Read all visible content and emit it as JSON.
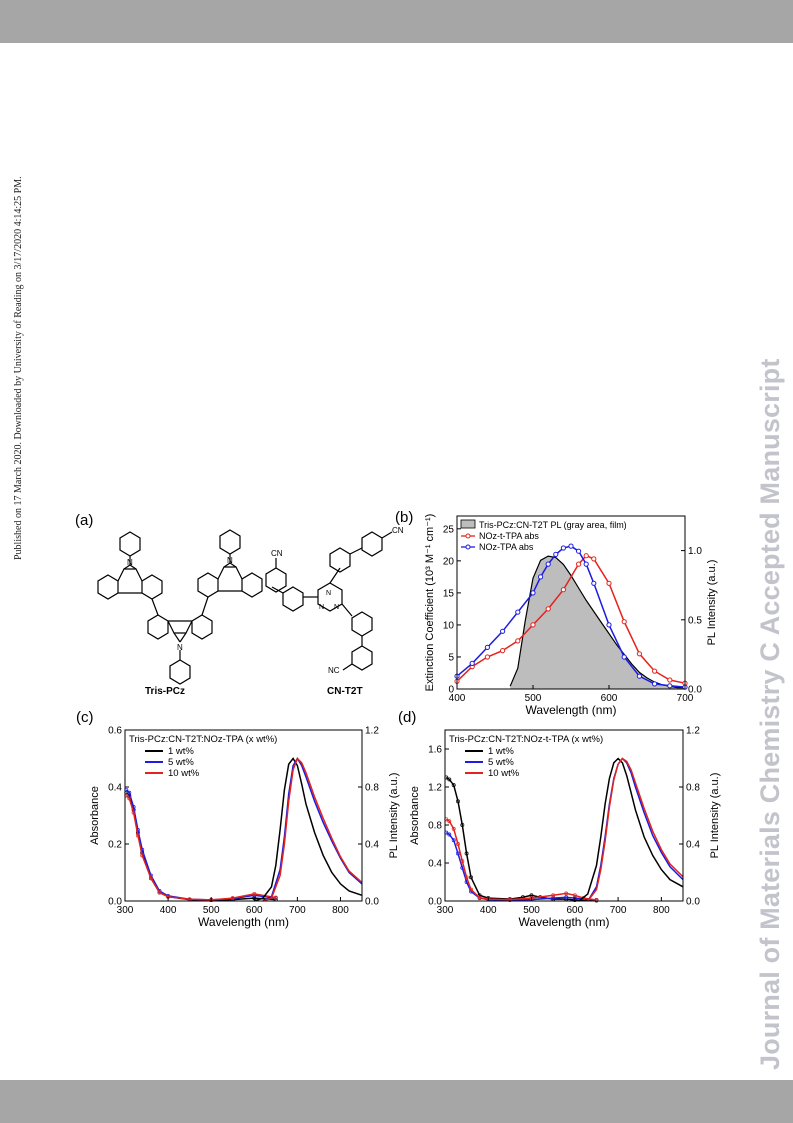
{
  "header": {
    "band_color": "#a6a6a6"
  },
  "side_note": "Published on 17 March 2020. Downloaded by University of Reading on 3/17/2020 4:14:25 PM.",
  "watermark": "Journal of Materials Chemistry C Accepted Manuscript",
  "panels": {
    "a": {
      "label": "(a)",
      "mol1_name": "Tris-PCz",
      "mol2_name": "CN-T2T",
      "atom_n": "N",
      "atom_cn": "CN",
      "atom_nc": "NC"
    },
    "b": {
      "label": "(b)"
    },
    "c": {
      "label": "(c)"
    },
    "d": {
      "label": "(d)"
    }
  },
  "chart_data": [
    {
      "panel": "b",
      "type": "line",
      "xlabel": "Wavelength (nm)",
      "ylabel": "Extinction Coefficient (10³ M⁻¹ cm⁻¹)",
      "y2label": "PL Intensity (a.u.)",
      "xlim": [
        400,
        700
      ],
      "ylim": [
        0,
        27
      ],
      "y2lim": [
        0,
        1.25
      ],
      "xticks": [
        "400",
        "500",
        "600",
        "700"
      ],
      "yticks": [
        "0",
        "5",
        "10",
        "15",
        "20",
        "25"
      ],
      "y2ticks": [
        "0.0",
        "0.5",
        "1.0"
      ],
      "legend": [
        "Tris-PCz:CN-T2T PL (gray area, film)",
        "NOz-t-TPA abs",
        "NOz-TPA abs"
      ],
      "legend_position": "top",
      "series": [
        {
          "name": "Tris-PCz:CN-T2T PL (gray area, film)",
          "axis": "y2",
          "style": "area",
          "color": "#bdbdbd",
          "x": [
            470,
            480,
            490,
            500,
            510,
            520,
            530,
            540,
            550,
            560,
            570,
            580,
            590,
            600,
            610,
            620,
            630,
            640,
            650,
            660,
            670,
            680,
            690,
            700
          ],
          "y": [
            0.02,
            0.15,
            0.5,
            0.8,
            0.93,
            0.96,
            0.95,
            0.9,
            0.82,
            0.73,
            0.64,
            0.56,
            0.48,
            0.4,
            0.32,
            0.25,
            0.18,
            0.12,
            0.08,
            0.05,
            0.03,
            0.02,
            0.01,
            0.01
          ]
        },
        {
          "name": "NOz-t-TPA abs",
          "axis": "y",
          "style": "line-marker",
          "color": "#e3231c",
          "x": [
            400,
            420,
            440,
            460,
            480,
            500,
            520,
            540,
            560,
            570,
            580,
            600,
            620,
            640,
            660,
            680,
            700
          ],
          "y": [
            1.2,
            3.5,
            5.0,
            6.0,
            7.5,
            10.0,
            12.5,
            15.5,
            19.5,
            20.8,
            20.3,
            16.5,
            10.5,
            5.5,
            2.8,
            1.4,
            0.9
          ]
        },
        {
          "name": "NOz-TPA abs",
          "axis": "y",
          "style": "line-marker",
          "color": "#1c1ce3",
          "x": [
            400,
            420,
            440,
            460,
            480,
            500,
            510,
            520,
            530,
            540,
            550,
            560,
            570,
            580,
            600,
            620,
            640,
            660,
            680,
            700
          ],
          "y": [
            2.0,
            4.0,
            6.5,
            9.0,
            12.0,
            15.0,
            17.5,
            19.5,
            21.0,
            22.0,
            22.3,
            21.5,
            19.5,
            16.5,
            10.0,
            5.0,
            2.0,
            0.8,
            0.5,
            0.3
          ]
        }
      ]
    },
    {
      "panel": "c",
      "type": "line",
      "title": "Tris-PCz:CN-T2T:NOz-TPA (x wt%)",
      "xlabel": "Wavelength (nm)",
      "ylabel": "Absorbance",
      "y2label": "PL Intensity (a.u.)",
      "xlim": [
        300,
        850
      ],
      "ylim": [
        0,
        0.6
      ],
      "y2lim": [
        0,
        1.2
      ],
      "xticks": [
        "300",
        "400",
        "500",
        "600",
        "700",
        "800"
      ],
      "yticks": [
        "0.0",
        "0.2",
        "0.4",
        "0.6"
      ],
      "y2ticks": [
        "0.0",
        "0.4",
        "0.8",
        "1.2"
      ],
      "legend": [
        "1 wt%",
        "5 wt%",
        "10 wt%"
      ],
      "series": [
        {
          "name": "1 wt%",
          "color": "#000000",
          "kind": "abs",
          "axis": "y",
          "x": [
            303,
            310,
            320,
            330,
            340,
            360,
            380,
            400,
            450,
            500,
            550,
            600,
            650
          ],
          "y": [
            0.38,
            0.37,
            0.32,
            0.24,
            0.17,
            0.08,
            0.03,
            0.015,
            0.005,
            0.003,
            0.005,
            0.01,
            0.005
          ]
        },
        {
          "name": "5 wt%",
          "color": "#1c1ce3",
          "kind": "abs",
          "axis": "y",
          "x": [
            303,
            310,
            320,
            330,
            340,
            360,
            380,
            400,
            450,
            500,
            550,
            600,
            650
          ],
          "y": [
            0.39,
            0.38,
            0.33,
            0.25,
            0.18,
            0.09,
            0.035,
            0.018,
            0.006,
            0.004,
            0.008,
            0.02,
            0.01
          ]
        },
        {
          "name": "10 wt%",
          "color": "#e3231c",
          "kind": "abs",
          "axis": "y",
          "x": [
            303,
            310,
            320,
            330,
            340,
            360,
            380,
            400,
            450,
            500,
            550,
            600,
            650
          ],
          "y": [
            0.37,
            0.36,
            0.31,
            0.23,
            0.16,
            0.08,
            0.03,
            0.015,
            0.006,
            0.004,
            0.01,
            0.025,
            0.012
          ]
        },
        {
          "name": "1 wt%",
          "color": "#000000",
          "kind": "pl",
          "axis": "y2",
          "x": [
            600,
            620,
            640,
            650,
            660,
            670,
            680,
            690,
            700,
            710,
            720,
            740,
            760,
            780,
            800,
            820,
            850
          ],
          "y": [
            0.0,
            0.02,
            0.1,
            0.25,
            0.5,
            0.78,
            0.96,
            1.0,
            0.95,
            0.82,
            0.68,
            0.48,
            0.32,
            0.2,
            0.12,
            0.07,
            0.04
          ]
        },
        {
          "name": "5 wt%",
          "color": "#1c1ce3",
          "kind": "pl",
          "axis": "y2",
          "x": [
            620,
            640,
            660,
            670,
            680,
            690,
            700,
            710,
            720,
            740,
            760,
            780,
            800,
            820,
            850
          ],
          "y": [
            0.0,
            0.03,
            0.22,
            0.45,
            0.75,
            0.95,
            1.0,
            0.95,
            0.87,
            0.7,
            0.55,
            0.42,
            0.3,
            0.2,
            0.12
          ]
        },
        {
          "name": "10 wt%",
          "color": "#e3231c",
          "kind": "pl",
          "axis": "y2",
          "x": [
            620,
            640,
            660,
            670,
            680,
            690,
            700,
            710,
            720,
            740,
            760,
            780,
            800,
            820,
            850
          ],
          "y": [
            0.0,
            0.02,
            0.18,
            0.4,
            0.7,
            0.92,
            1.0,
            0.97,
            0.9,
            0.73,
            0.58,
            0.44,
            0.31,
            0.21,
            0.13
          ]
        }
      ]
    },
    {
      "panel": "d",
      "type": "line",
      "title": "Tris-PCz:CN-T2T:NOz-t-TPA (x wt%)",
      "xlabel": "Wavelength (nm)",
      "ylabel": "Absorbance",
      "y2label": "PL Intensity (a.u.)",
      "xlim": [
        300,
        850
      ],
      "ylim": [
        0,
        1.8
      ],
      "y2lim": [
        0,
        1.2
      ],
      "xticks": [
        "300",
        "400",
        "500",
        "600",
        "700",
        "800"
      ],
      "yticks": [
        "0.0",
        "0.4",
        "0.8",
        "1.2",
        "1.6"
      ],
      "y2ticks": [
        "0.0",
        "0.4",
        "0.8",
        "1.2"
      ],
      "legend": [
        "1 wt%",
        "5 wt%",
        "10 wt%"
      ],
      "series": [
        {
          "name": "1 wt%",
          "color": "#000000",
          "kind": "abs",
          "axis": "y",
          "x": [
            303,
            310,
            320,
            330,
            340,
            350,
            360,
            380,
            400,
            450,
            480,
            500,
            520,
            550,
            580,
            600,
            650
          ],
          "y": [
            1.3,
            1.28,
            1.22,
            1.05,
            0.8,
            0.5,
            0.25,
            0.06,
            0.03,
            0.02,
            0.04,
            0.06,
            0.04,
            0.02,
            0.02,
            0.01,
            0.005
          ]
        },
        {
          "name": "5 wt%",
          "color": "#1c1ce3",
          "kind": "abs",
          "axis": "y",
          "x": [
            303,
            310,
            320,
            330,
            340,
            350,
            360,
            380,
            400,
            450,
            500,
            550,
            580,
            600,
            650
          ],
          "y": [
            0.72,
            0.7,
            0.64,
            0.5,
            0.35,
            0.2,
            0.1,
            0.03,
            0.015,
            0.01,
            0.015,
            0.03,
            0.04,
            0.03,
            0.01
          ]
        },
        {
          "name": "10 wt%",
          "color": "#e3231c",
          "kind": "abs",
          "axis": "y",
          "x": [
            303,
            310,
            320,
            330,
            340,
            350,
            360,
            380,
            400,
            450,
            500,
            550,
            580,
            600,
            620,
            650
          ],
          "y": [
            0.86,
            0.84,
            0.76,
            0.6,
            0.42,
            0.25,
            0.12,
            0.035,
            0.02,
            0.015,
            0.03,
            0.06,
            0.08,
            0.06,
            0.03,
            0.01
          ]
        },
        {
          "name": "1 wt%",
          "color": "#000000",
          "kind": "pl",
          "axis": "y2",
          "x": [
            610,
            630,
            650,
            660,
            670,
            680,
            690,
            700,
            710,
            720,
            730,
            740,
            760,
            780,
            800,
            820,
            850
          ],
          "y": [
            0.0,
            0.05,
            0.25,
            0.45,
            0.68,
            0.86,
            0.97,
            1.0,
            0.97,
            0.88,
            0.76,
            0.64,
            0.45,
            0.32,
            0.22,
            0.15,
            0.1
          ]
        },
        {
          "name": "5 wt%",
          "color": "#1c1ce3",
          "kind": "pl",
          "axis": "y2",
          "x": [
            630,
            650,
            660,
            670,
            680,
            690,
            700,
            710,
            720,
            730,
            740,
            760,
            780,
            800,
            820,
            850
          ],
          "y": [
            0.0,
            0.1,
            0.25,
            0.45,
            0.68,
            0.86,
            0.96,
            1.0,
            0.97,
            0.9,
            0.8,
            0.62,
            0.46,
            0.34,
            0.24,
            0.15
          ]
        },
        {
          "name": "10 wt%",
          "color": "#e3231c",
          "kind": "pl",
          "axis": "y2",
          "x": [
            630,
            650,
            660,
            670,
            680,
            690,
            700,
            710,
            720,
            730,
            740,
            760,
            780,
            800,
            820,
            850
          ],
          "y": [
            0.0,
            0.08,
            0.22,
            0.42,
            0.66,
            0.85,
            0.96,
            1.0,
            0.98,
            0.92,
            0.83,
            0.65,
            0.49,
            0.36,
            0.26,
            0.17
          ]
        }
      ]
    }
  ]
}
